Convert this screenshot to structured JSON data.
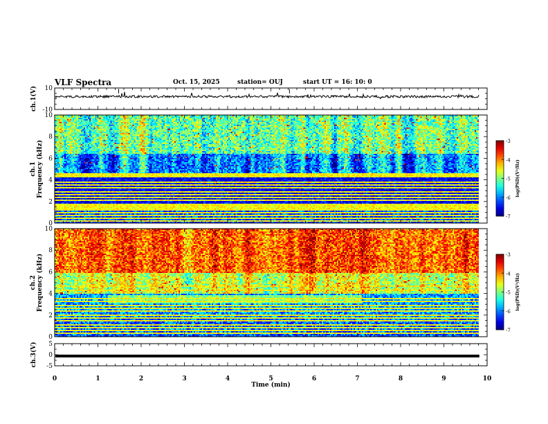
{
  "header": {
    "title": "VLF Spectra",
    "date": "Oct. 15, 2025",
    "station": "station= OUJ",
    "start": "start  UT =   16: 10: 0"
  },
  "chart_data": [
    {
      "type": "line",
      "name": "ch1-waveform",
      "ylabel": "ch.1(V)",
      "ylim": [
        -10,
        10
      ],
      "yticks": [
        "10",
        "-10"
      ],
      "xlim": [
        0,
        10
      ],
      "x_extent_min": 9.82,
      "baseline_v": 2
    },
    {
      "type": "heatmap",
      "name": "ch1-spectrogram",
      "ylabel_line1": "ch.1",
      "ylabel_line2": "Frequency  (kHz)",
      "ylim": [
        0,
        10
      ],
      "yticks": [
        "0",
        "2",
        "4",
        "6",
        "8",
        "10"
      ],
      "xlim": [
        0,
        10
      ],
      "x_extent_min": 9.82,
      "colorbar": {
        "range": [
          -7,
          -3
        ],
        "ticks": [
          "-3",
          "-4",
          "-5",
          "-6",
          "-7"
        ],
        "label": "log(PSD)(V²/Hz)"
      }
    },
    {
      "type": "heatmap",
      "name": "ch2-spectrogram",
      "ylabel_line1": "ch.2",
      "ylabel_line2": "Frequency  (kHz)",
      "ylim": [
        0,
        10
      ],
      "yticks": [
        "0",
        "2",
        "4",
        "6",
        "8",
        "10"
      ],
      "xlim": [
        0,
        10
      ],
      "x_extent_min": 9.82,
      "colorbar": {
        "range": [
          -7,
          -3
        ],
        "ticks": [
          "-3",
          "-4",
          "-5",
          "-6",
          "-7"
        ],
        "label": "log(PSD)(V²/Hz)"
      }
    },
    {
      "type": "line",
      "name": "ch3-waveform",
      "ylabel": "ch.3(V)",
      "ylim": [
        -5,
        5
      ],
      "yticks": [
        "5",
        "0",
        "-5"
      ],
      "xlim": [
        0,
        10
      ],
      "x_extent_min": 9.82,
      "baseline_v": -0.6,
      "xlabel": "Time  (min)",
      "xticks": [
        "0",
        "1",
        "2",
        "3",
        "4",
        "5",
        "6",
        "7",
        "8",
        "9",
        "10"
      ]
    }
  ]
}
